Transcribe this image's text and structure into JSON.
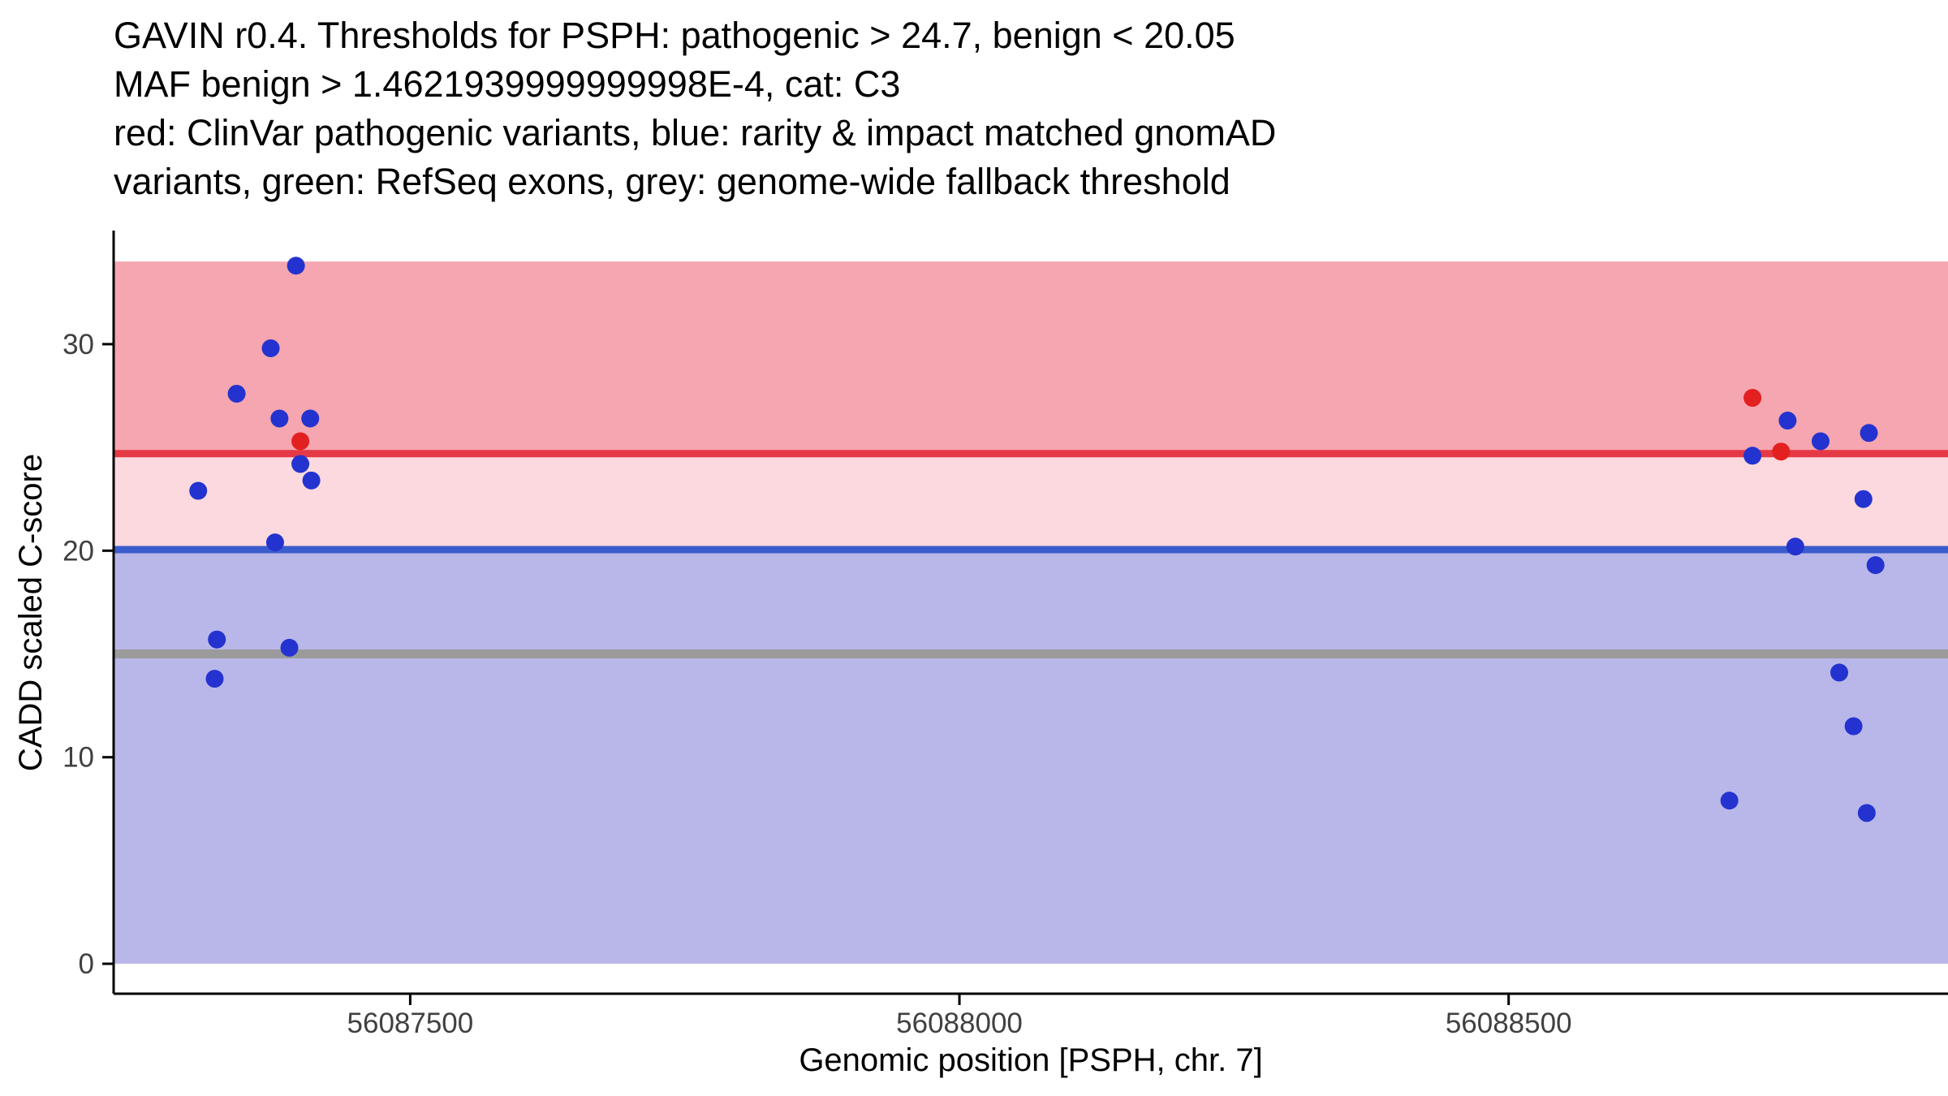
{
  "chart_data": {
    "type": "scatter",
    "title_lines": [
      "GAVIN r0.4. Thresholds for PSPH: pathogenic > 24.7, benign < 20.05",
      "MAF benign > 1.4621939999999998E-4, cat: C3",
      "red: ClinVar pathogenic variants, blue: rarity & impact matched gnomAD",
      "variants, green: RefSeq exons, grey: genome-wide fallback threshold"
    ],
    "xlabel": "Genomic position [PSPH, chr. 7]",
    "ylabel": "CADD scaled C-score",
    "grid": false,
    "legend_position": "none",
    "x_axis": {
      "range": [
        56087230,
        56088900
      ],
      "ticks": [
        56087500,
        56088000,
        56088500
      ],
      "tick_labels": [
        "56087500",
        "56088000",
        "56088500"
      ]
    },
    "y_axis": {
      "range": [
        -1.45,
        35.5
      ],
      "ticks": [
        0,
        10,
        20,
        30
      ],
      "tick_labels": [
        "0",
        "10",
        "20",
        "30"
      ]
    },
    "bands": [
      {
        "name": "pathogenic-zone-band",
        "from": 24.7,
        "to": 34.0,
        "color": "#f5a6b0"
      },
      {
        "name": "intermediate-zone-band",
        "from": 20.05,
        "to": 24.7,
        "color": "#fbd9de"
      },
      {
        "name": "benign-zone-band",
        "from": 0,
        "to": 20.05,
        "color": "#b9b7e9"
      }
    ],
    "threshold_lines": [
      {
        "name": "pathogenic-threshold-line",
        "y": 24.7,
        "color": "#e63946",
        "width": 9
      },
      {
        "name": "benign-threshold-line",
        "y": 20.05,
        "color": "#3b5ccd",
        "width": 9
      },
      {
        "name": "genome-wide-fallback-line",
        "y": 15.0,
        "color": "#9b9b9b",
        "width": 11
      }
    ],
    "series": [
      {
        "name": "rarity & impact matched gnomAD variants",
        "color": "#2433cf",
        "point_name": "gnomad-variant-point",
        "points": [
          [
            56087307,
            22.9
          ],
          [
            56087342,
            27.6
          ],
          [
            56087373,
            29.8
          ],
          [
            56087396,
            33.8
          ],
          [
            56087381,
            26.4
          ],
          [
            56087409,
            26.4
          ],
          [
            56087400,
            24.2
          ],
          [
            56087410,
            23.4
          ],
          [
            56087377,
            20.4
          ],
          [
            56087324,
            15.7
          ],
          [
            56087390,
            15.3
          ],
          [
            56087322,
            13.8
          ],
          [
            56088754,
            26.3
          ],
          [
            56088722,
            24.6
          ],
          [
            56088784,
            25.3
          ],
          [
            56088828,
            25.7
          ],
          [
            56088823,
            22.5
          ],
          [
            56088761,
            20.2
          ],
          [
            56088834,
            19.3
          ],
          [
            56088801,
            14.1
          ],
          [
            56088814,
            11.5
          ],
          [
            56088701,
            7.9
          ],
          [
            56088826,
            7.3
          ]
        ]
      },
      {
        "name": "ClinVar pathogenic variants",
        "color": "#e32020",
        "point_name": "clinvar-pathogenic-point",
        "points": [
          [
            56087400,
            25.3
          ],
          [
            56088722,
            27.4
          ],
          [
            56088748,
            24.8
          ]
        ]
      }
    ]
  },
  "axis_style": {
    "axis_color": "#000000",
    "tick_label_color": "#404040"
  }
}
